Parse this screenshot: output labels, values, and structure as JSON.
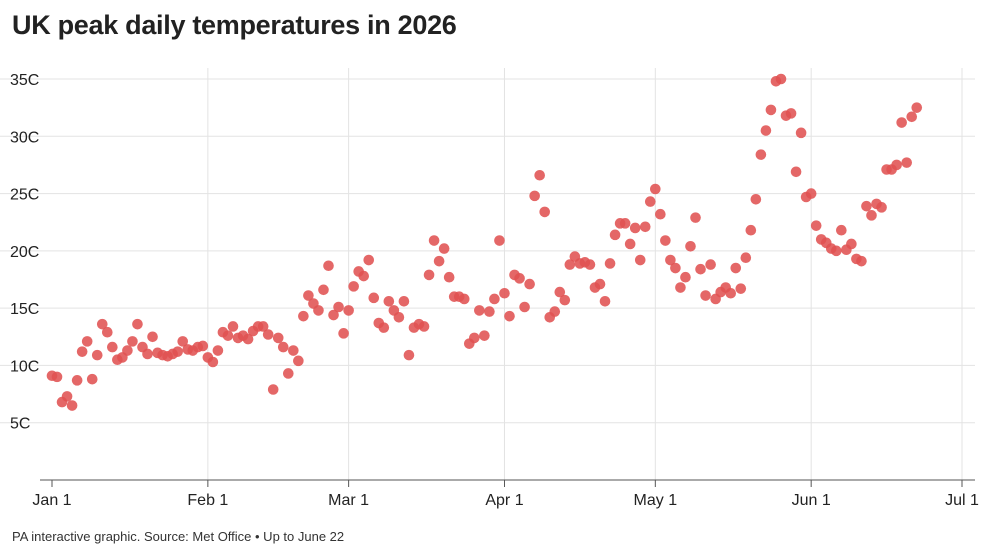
{
  "chart_data": {
    "type": "scatter",
    "title": "UK peak daily temperatures in 2026",
    "source": "PA interactive graphic. Source: Met Office • Up to June 22",
    "x_ticks": [
      {
        "day": 0,
        "label": "Jan 1"
      },
      {
        "day": 31,
        "label": "Feb 1"
      },
      {
        "day": 59,
        "label": "Mar 1"
      },
      {
        "day": 90,
        "label": "Apr 1"
      },
      {
        "day": 120,
        "label": "May 1"
      },
      {
        "day": 151,
        "label": "Jun 1"
      },
      {
        "day": 181,
        "label": "Jul 1"
      }
    ],
    "y_ticks": [
      {
        "value": 5,
        "label": "5C"
      },
      {
        "value": 10,
        "label": "10C"
      },
      {
        "value": 15,
        "label": "15C"
      },
      {
        "value": 20,
        "label": "20C"
      },
      {
        "value": 25,
        "label": "25C"
      },
      {
        "value": 30,
        "label": "30C"
      },
      {
        "value": 35,
        "label": "35C"
      }
    ],
    "ylim": [
      0,
      35
    ],
    "grid": true,
    "point_color": "#e05252",
    "x": [
      "Jan 1",
      "Jan 2",
      "Jan 3",
      "Jan 4",
      "Jan 5",
      "Jan 6",
      "Jan 7",
      "Jan 8",
      "Jan 9",
      "Jan 10",
      "Jan 11",
      "Jan 12",
      "Jan 13",
      "Jan 14",
      "Jan 15",
      "Jan 16",
      "Jan 17",
      "Jan 18",
      "Jan 19",
      "Jan 20",
      "Jan 21",
      "Jan 22",
      "Jan 23",
      "Jan 24",
      "Jan 25",
      "Jan 26",
      "Jan 27",
      "Jan 28",
      "Jan 29",
      "Jan 30",
      "Jan 31",
      "Feb 1",
      "Feb 2",
      "Feb 3",
      "Feb 4",
      "Feb 5",
      "Feb 6",
      "Feb 7",
      "Feb 8",
      "Feb 9",
      "Feb 10",
      "Feb 11",
      "Feb 12",
      "Feb 13",
      "Feb 14",
      "Feb 15",
      "Feb 16",
      "Feb 17",
      "Feb 18",
      "Feb 19",
      "Feb 20",
      "Feb 21",
      "Feb 22",
      "Feb 23",
      "Feb 24",
      "Feb 25",
      "Feb 26",
      "Feb 27",
      "Feb 28",
      "Mar 1",
      "Mar 2",
      "Mar 3",
      "Mar 4",
      "Mar 5",
      "Mar 6",
      "Mar 7",
      "Mar 8",
      "Mar 9",
      "Mar 10",
      "Mar 11",
      "Mar 12",
      "Mar 13",
      "Mar 14",
      "Mar 15",
      "Mar 16",
      "Mar 17",
      "Mar 18",
      "Mar 19",
      "Mar 20",
      "Mar 21",
      "Mar 22",
      "Mar 23",
      "Mar 24",
      "Mar 25",
      "Mar 26",
      "Mar 27",
      "Mar 28",
      "Mar 29",
      "Mar 30",
      "Mar 31",
      "Apr 1",
      "Apr 2",
      "Apr 3",
      "Apr 4",
      "Apr 5",
      "Apr 6",
      "Apr 7",
      "Apr 8",
      "Apr 9",
      "Apr 10",
      "Apr 11",
      "Apr 12",
      "Apr 13",
      "Apr 14",
      "Apr 15",
      "Apr 16",
      "Apr 17",
      "Apr 18",
      "Apr 19",
      "Apr 20",
      "Apr 21",
      "Apr 22",
      "Apr 23",
      "Apr 24",
      "Apr 25",
      "Apr 26",
      "Apr 27",
      "Apr 28",
      "Apr 29",
      "Apr 30",
      "May 1",
      "May 2",
      "May 3",
      "May 4",
      "May 5",
      "May 6",
      "May 7",
      "May 8",
      "May 9",
      "May 10",
      "May 11",
      "May 12",
      "May 13",
      "May 14",
      "May 15",
      "May 16",
      "May 17",
      "May 18",
      "May 19",
      "May 20",
      "May 21",
      "May 22",
      "May 23",
      "May 24",
      "May 25",
      "May 26",
      "May 27",
      "May 28",
      "May 29",
      "May 30",
      "May 31",
      "Jun 1",
      "Jun 2",
      "Jun 3",
      "Jun 4",
      "Jun 5",
      "Jun 6",
      "Jun 7",
      "Jun 8",
      "Jun 9",
      "Jun 10",
      "Jun 11",
      "Jun 12",
      "Jun 13",
      "Jun 14",
      "Jun 15",
      "Jun 16",
      "Jun 17",
      "Jun 18",
      "Jun 19",
      "Jun 20",
      "Jun 21",
      "Jun 22"
    ],
    "y": [
      9.1,
      9.0,
      6.8,
      7.3,
      6.5,
      8.7,
      11.2,
      12.1,
      8.8,
      10.9,
      13.6,
      12.9,
      11.6,
      10.5,
      10.7,
      11.3,
      12.1,
      13.6,
      11.6,
      11.0,
      12.5,
      11.1,
      10.9,
      10.8,
      11.0,
      11.2,
      12.1,
      11.4,
      11.3,
      11.6,
      11.7,
      10.7,
      10.3,
      11.3,
      12.9,
      12.6,
      13.4,
      12.4,
      12.6,
      12.3,
      13.0,
      13.4,
      13.4,
      12.7,
      7.9,
      12.4,
      11.6,
      9.3,
      11.3,
      10.4,
      14.3,
      16.1,
      15.4,
      14.8,
      16.6,
      18.7,
      14.4,
      15.1,
      12.8,
      14.8,
      16.9,
      18.2,
      17.8,
      19.2,
      15.9,
      13.7,
      13.3,
      15.6,
      14.8,
      14.2,
      15.6,
      10.9,
      13.3,
      13.6,
      13.4,
      17.9,
      20.9,
      19.1,
      20.2,
      17.7,
      16.0,
      16.0,
      15.8,
      11.9,
      12.4,
      14.8,
      12.6,
      14.7,
      15.8,
      20.9,
      16.3,
      14.3,
      17.9,
      17.6,
      15.1,
      17.1,
      24.8,
      26.6,
      23.4,
      14.2,
      14.7,
      16.4,
      15.7,
      18.8,
      19.5,
      18.9,
      19.0,
      18.8,
      16.8,
      17.1,
      15.6,
      18.9,
      21.4,
      22.4,
      22.4,
      20.6,
      22.0,
      19.2,
      22.1,
      24.3,
      25.4,
      23.2,
      20.9,
      19.2,
      18.5,
      16.8,
      17.7,
      20.4,
      22.9,
      18.4,
      16.1,
      18.8,
      15.8,
      16.4,
      16.8,
      16.3,
      18.5,
      16.7,
      19.4,
      21.8,
      24.5,
      28.4,
      30.5,
      32.3,
      34.8,
      35.0,
      31.8,
      32.0,
      26.9,
      30.3,
      24.7,
      25.0,
      22.2,
      21.0,
      20.7,
      20.2,
      20.0,
      21.8,
      20.1,
      20.6,
      19.3,
      19.1,
      23.9,
      23.1,
      24.1,
      23.8,
      27.1,
      27.1,
      27.5,
      31.2,
      27.7,
      31.7,
      32.5
    ]
  }
}
